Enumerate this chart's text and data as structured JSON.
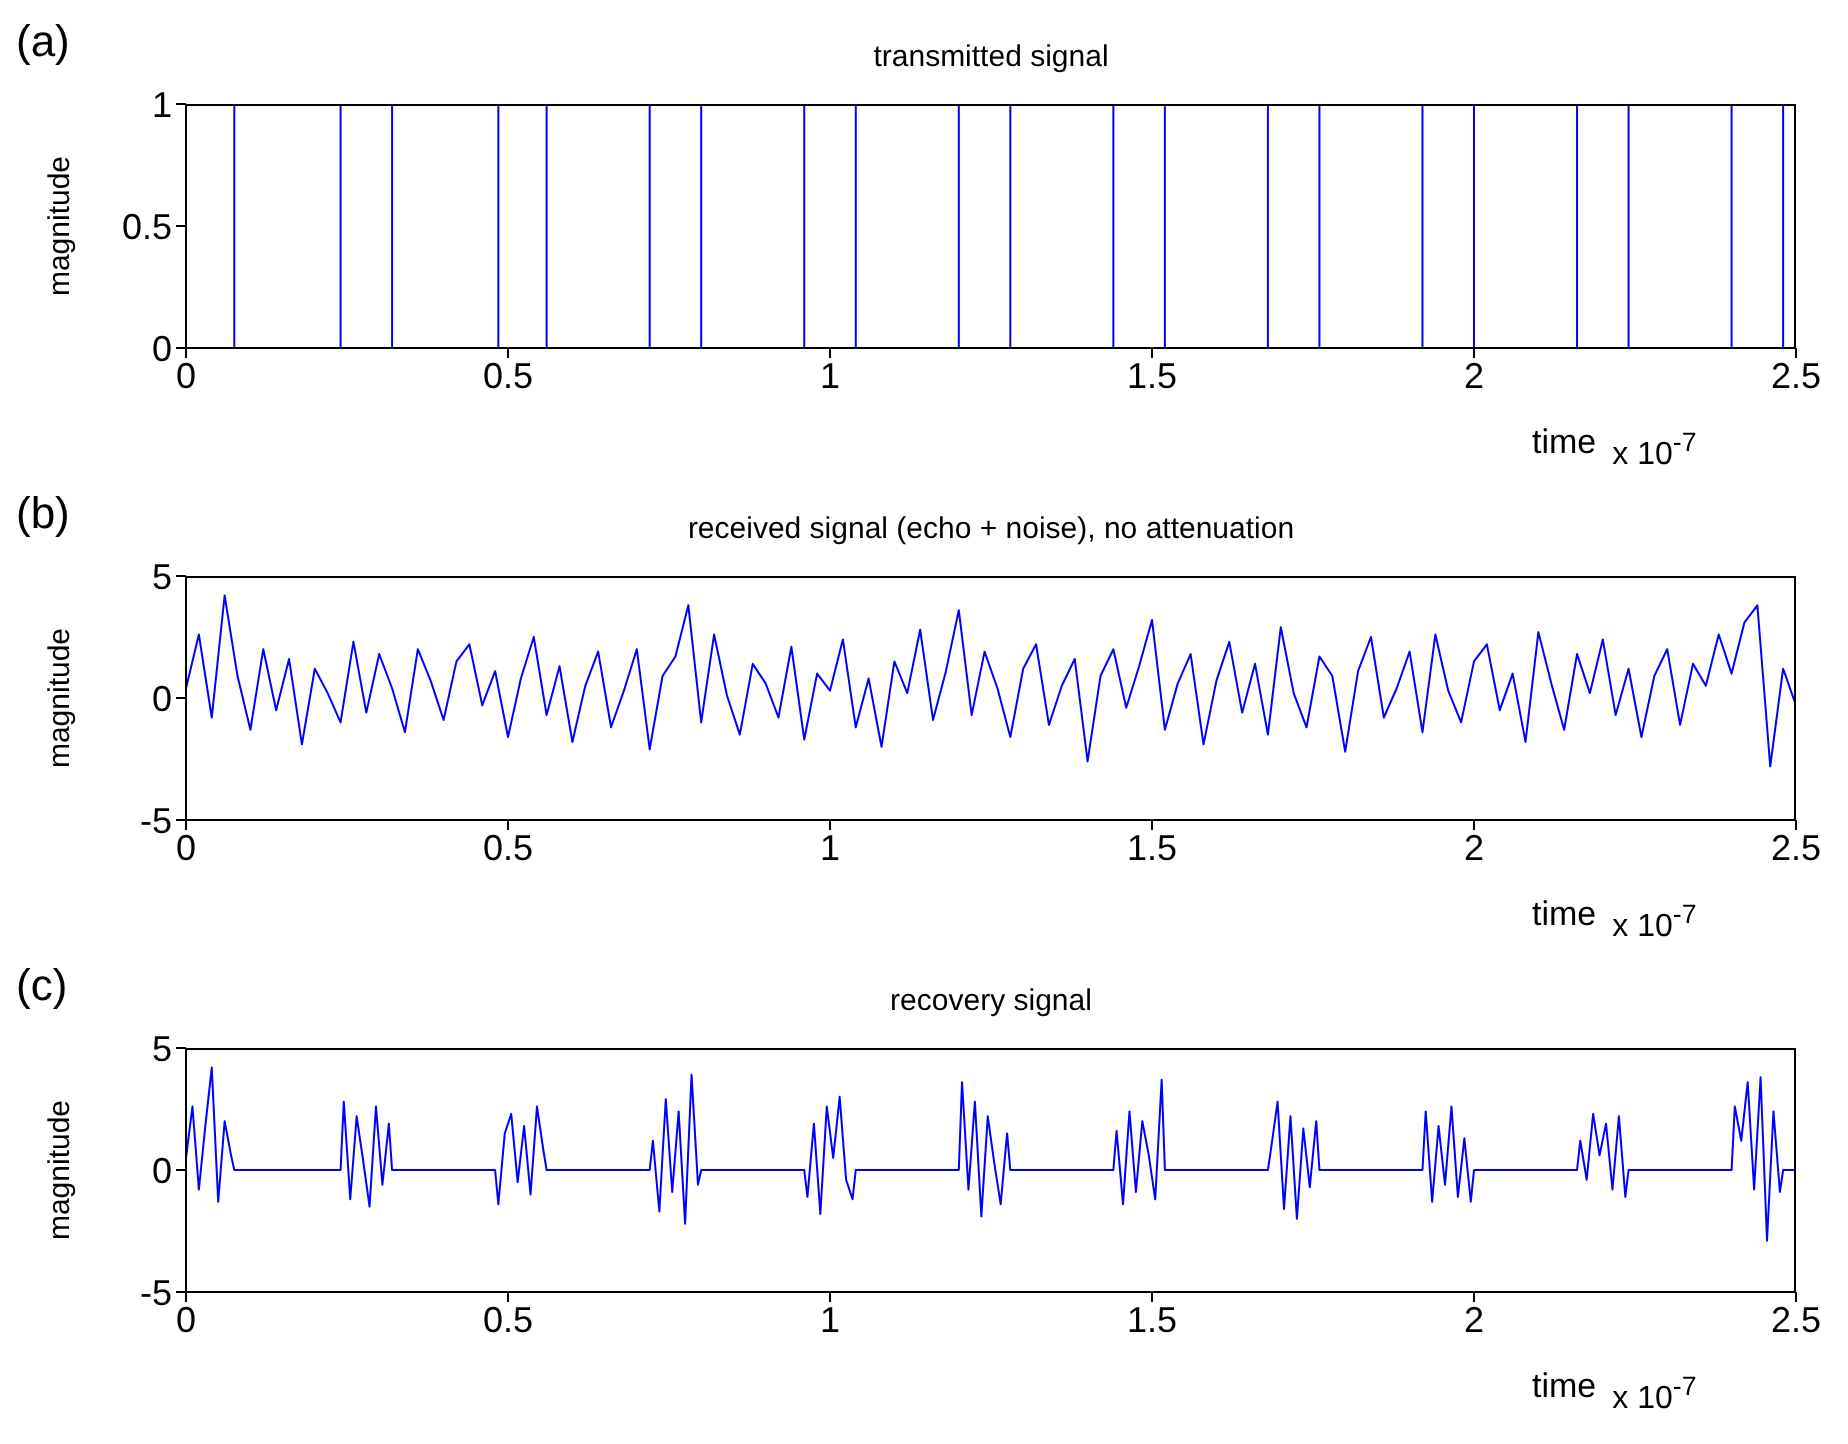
{
  "chart_data": [
    {
      "type": "step",
      "title": "transmitted signal",
      "xlabel": "time",
      "ylabel": "magnitude",
      "annotations": [
        "(a)",
        "x 10$^{-7}$"
      ],
      "xlim": [
        0,
        2.5
      ],
      "xticks": [
        0,
        0.5,
        1,
        1.5,
        2,
        2.5
      ],
      "ylim": [
        0,
        1
      ],
      "yticks": [
        0,
        0.5,
        1
      ],
      "marker": "none",
      "x": [
        0,
        0.075,
        0.24,
        0.32,
        0.485,
        0.56,
        0.72,
        0.8,
        0.96,
        1.04,
        1.2,
        1.28,
        1.44,
        1.52,
        1.68,
        1.76,
        1.92,
        2.0,
        2.16,
        2.24,
        2.4,
        2.48,
        2.5
      ],
      "series": [
        {
          "color": "#0000ff",
          "values": [
            1,
            0,
            1,
            0,
            1,
            0,
            1,
            0,
            1,
            0,
            1,
            0,
            1,
            0,
            1,
            0,
            1,
            0,
            1,
            0,
            1,
            0,
            0
          ]
        }
      ]
    },
    {
      "type": "line",
      "title": "received signal (echo + noise), no attenuation",
      "xlabel": "time",
      "ylabel": "magnitude",
      "annotations": [
        "(b)",
        "x 10$^{-7}$"
      ],
      "xlim": [
        0,
        2.5
      ],
      "xticks": [
        0,
        0.5,
        1,
        1.5,
        2,
        2.5
      ],
      "ylim": [
        -5,
        5
      ],
      "yticks": [
        -5,
        0,
        5
      ],
      "marker": "none",
      "x": [
        0,
        0.02,
        0.04,
        0.06,
        0.08,
        0.1,
        0.12,
        0.14,
        0.16,
        0.18,
        0.2,
        0.22,
        0.24,
        0.26,
        0.28,
        0.3,
        0.32,
        0.34,
        0.36,
        0.38,
        0.4,
        0.42,
        0.44,
        0.46,
        0.48,
        0.5,
        0.52,
        0.54,
        0.56,
        0.58,
        0.6,
        0.62,
        0.64,
        0.66,
        0.68,
        0.7,
        0.72,
        0.74,
        0.76,
        0.78,
        0.8,
        0.82,
        0.84,
        0.86,
        0.88,
        0.9,
        0.92,
        0.94,
        0.96,
        0.98,
        1.0,
        1.02,
        1.04,
        1.06,
        1.08,
        1.1,
        1.12,
        1.14,
        1.16,
        1.18,
        1.2,
        1.22,
        1.24,
        1.26,
        1.28,
        1.3,
        1.32,
        1.34,
        1.36,
        1.38,
        1.4,
        1.42,
        1.44,
        1.46,
        1.48,
        1.5,
        1.52,
        1.54,
        1.56,
        1.58,
        1.6,
        1.62,
        1.64,
        1.66,
        1.68,
        1.7,
        1.72,
        1.74,
        1.76,
        1.78,
        1.8,
        1.82,
        1.84,
        1.86,
        1.88,
        1.9,
        1.92,
        1.94,
        1.96,
        1.98,
        2.0,
        2.02,
        2.04,
        2.06,
        2.08,
        2.1,
        2.12,
        2.14,
        2.16,
        2.18,
        2.2,
        2.22,
        2.24,
        2.26,
        2.28,
        2.3,
        2.32,
        2.34,
        2.36,
        2.38,
        2.4,
        2.42,
        2.44,
        2.46,
        2.48,
        2.5
      ],
      "series": [
        {
          "color": "#0000ff",
          "values": [
            0.4,
            2.6,
            -0.8,
            4.2,
            0.9,
            -1.3,
            2.0,
            -0.5,
            1.6,
            -1.9,
            1.2,
            0.2,
            -1.0,
            2.3,
            -0.6,
            1.8,
            0.4,
            -1.4,
            2.0,
            0.7,
            -0.9,
            1.5,
            2.2,
            -0.3,
            1.1,
            -1.6,
            0.8,
            2.5,
            -0.7,
            1.3,
            -1.8,
            0.5,
            1.9,
            -1.2,
            0.3,
            2.0,
            -2.1,
            0.9,
            1.7,
            3.8,
            -1.0,
            2.6,
            0.1,
            -1.5,
            1.4,
            0.6,
            -0.8,
            2.1,
            -1.7,
            1.0,
            0.3,
            2.4,
            -1.2,
            0.8,
            -2.0,
            1.5,
            0.2,
            2.8,
            -0.9,
            1.1,
            3.6,
            -0.7,
            1.9,
            0.4,
            -1.6,
            1.2,
            2.2,
            -1.1,
            0.5,
            1.6,
            -2.6,
            0.9,
            2.0,
            -0.4,
            1.3,
            3.2,
            -1.3,
            0.6,
            1.8,
            -1.9,
            0.7,
            2.3,
            -0.6,
            1.4,
            -1.5,
            2.9,
            0.2,
            -1.2,
            1.7,
            0.9,
            -2.2,
            1.1,
            2.5,
            -0.8,
            0.4,
            1.9,
            -1.4,
            2.6,
            0.3,
            -1.0,
            1.5,
            2.2,
            -0.5,
            1.0,
            -1.8,
            2.7,
            0.6,
            -1.3,
            1.8,
            0.2,
            2.4,
            -0.7,
            1.2,
            -1.6,
            0.9,
            2.0,
            -1.1,
            1.4,
            0.5,
            2.6,
            1.0,
            3.1,
            3.8,
            -2.8,
            1.2,
            -0.3
          ]
        }
      ]
    },
    {
      "type": "line",
      "title": "recovery signal",
      "xlabel": "time",
      "ylabel": "magnitude",
      "annotations": [
        "(c)",
        "x 10$^{-7}$"
      ],
      "xlim": [
        0,
        2.5
      ],
      "xticks": [
        0,
        0.5,
        1,
        1.5,
        2,
        2.5
      ],
      "ylim": [
        -5,
        5
      ],
      "yticks": [
        -5,
        0,
        5
      ],
      "marker": "none",
      "x": [
        0,
        0.01,
        0.02,
        0.03,
        0.04,
        0.05,
        0.06,
        0.07,
        0.075,
        0.24,
        0.245,
        0.255,
        0.265,
        0.275,
        0.285,
        0.295,
        0.305,
        0.315,
        0.32,
        0.48,
        0.485,
        0.495,
        0.505,
        0.515,
        0.525,
        0.535,
        0.545,
        0.555,
        0.56,
        0.72,
        0.725,
        0.735,
        0.745,
        0.755,
        0.765,
        0.775,
        0.785,
        0.795,
        0.8,
        0.96,
        0.965,
        0.975,
        0.985,
        0.995,
        1.005,
        1.015,
        1.025,
        1.035,
        1.04,
        1.2,
        1.205,
        1.215,
        1.225,
        1.235,
        1.245,
        1.255,
        1.265,
        1.275,
        1.28,
        1.44,
        1.445,
        1.455,
        1.465,
        1.475,
        1.485,
        1.495,
        1.505,
        1.515,
        1.52,
        1.68,
        1.685,
        1.695,
        1.705,
        1.715,
        1.725,
        1.735,
        1.745,
        1.755,
        1.76,
        1.92,
        1.925,
        1.935,
        1.945,
        1.955,
        1.965,
        1.975,
        1.985,
        1.995,
        2.0,
        2.16,
        2.165,
        2.175,
        2.185,
        2.195,
        2.205,
        2.215,
        2.225,
        2.235,
        2.24,
        2.4,
        2.405,
        2.415,
        2.425,
        2.435,
        2.445,
        2.455,
        2.465,
        2.475,
        2.48,
        2.5
      ],
      "series": [
        {
          "color": "#0000ff",
          "values": [
            0.5,
            2.6,
            -0.8,
            1.8,
            4.2,
            -1.3,
            2.0,
            0.6,
            0,
            0,
            2.8,
            -1.2,
            2.2,
            0.4,
            -1.5,
            2.6,
            -0.6,
            1.9,
            0,
            0,
            -1.4,
            1.5,
            2.3,
            -0.5,
            1.8,
            -1.0,
            2.6,
            0.8,
            0,
            0,
            1.2,
            -1.7,
            2.9,
            -0.9,
            2.4,
            -2.2,
            3.9,
            -0.6,
            0,
            0,
            -1.1,
            1.9,
            -1.8,
            2.6,
            0.5,
            3.0,
            -0.4,
            -1.2,
            0,
            0,
            3.6,
            -0.8,
            2.8,
            -1.9,
            2.2,
            0.3,
            -1.4,
            1.5,
            0,
            0,
            1.6,
            -1.4,
            2.4,
            -0.9,
            2.0,
            0.6,
            -1.2,
            3.7,
            0,
            0,
            0.9,
            2.8,
            -1.6,
            2.2,
            -2.0,
            1.7,
            -0.7,
            2.0,
            0,
            0,
            2.4,
            -1.3,
            1.8,
            -0.6,
            2.6,
            -1.1,
            1.3,
            -1.3,
            0,
            0,
            1.2,
            -0.4,
            2.3,
            0.6,
            1.9,
            -0.8,
            2.2,
            -1.1,
            0,
            0,
            2.6,
            1.2,
            3.6,
            -0.8,
            3.8,
            -2.9,
            2.4,
            -0.9,
            0,
            0
          ]
        }
      ]
    }
  ]
}
